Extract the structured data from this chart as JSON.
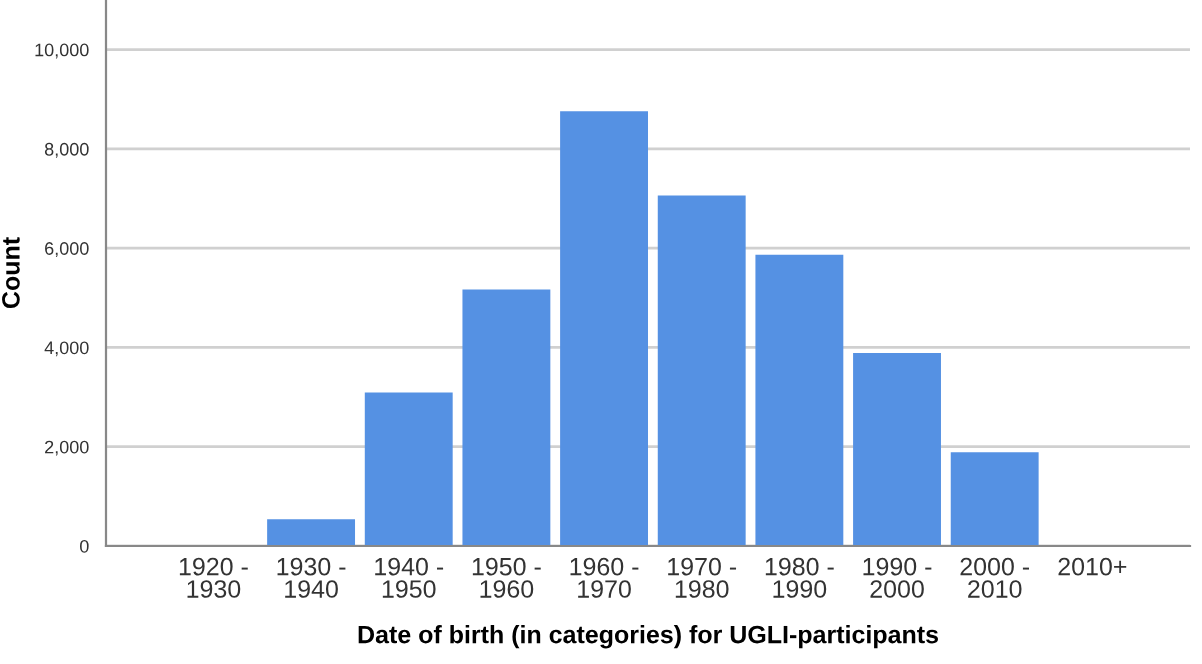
{
  "chart_data": {
    "type": "bar",
    "xlabel": "Date of birth (in categories) for UGLI-participants",
    "ylabel": "Count",
    "categories": [
      "1920 -\n1930",
      "1930 -\n1940",
      "1940 -\n1950",
      "1950 -\n1960",
      "1960 -\n1970",
      "1970 -\n1980",
      "1980 -\n1990",
      "1990 -\n2000",
      "2000 -\n2010",
      "2010+"
    ],
    "values": [
      null,
      540,
      3090,
      5170,
      8760,
      7060,
      5870,
      3890,
      1890,
      null
    ],
    "color": "#5591e3",
    "ylim": [
      0,
      11000
    ],
    "yticks": [
      0,
      {
        "value": 2000,
        "label": "2,000"
      },
      {
        "value": 4000,
        "label": "4,000"
      },
      {
        "value": 6000,
        "label": "6,000"
      },
      {
        "value": 8000,
        "label": "8,000"
      },
      {
        "value": 10000,
        "label": "10,000"
      }
    ],
    "grid": "y"
  }
}
